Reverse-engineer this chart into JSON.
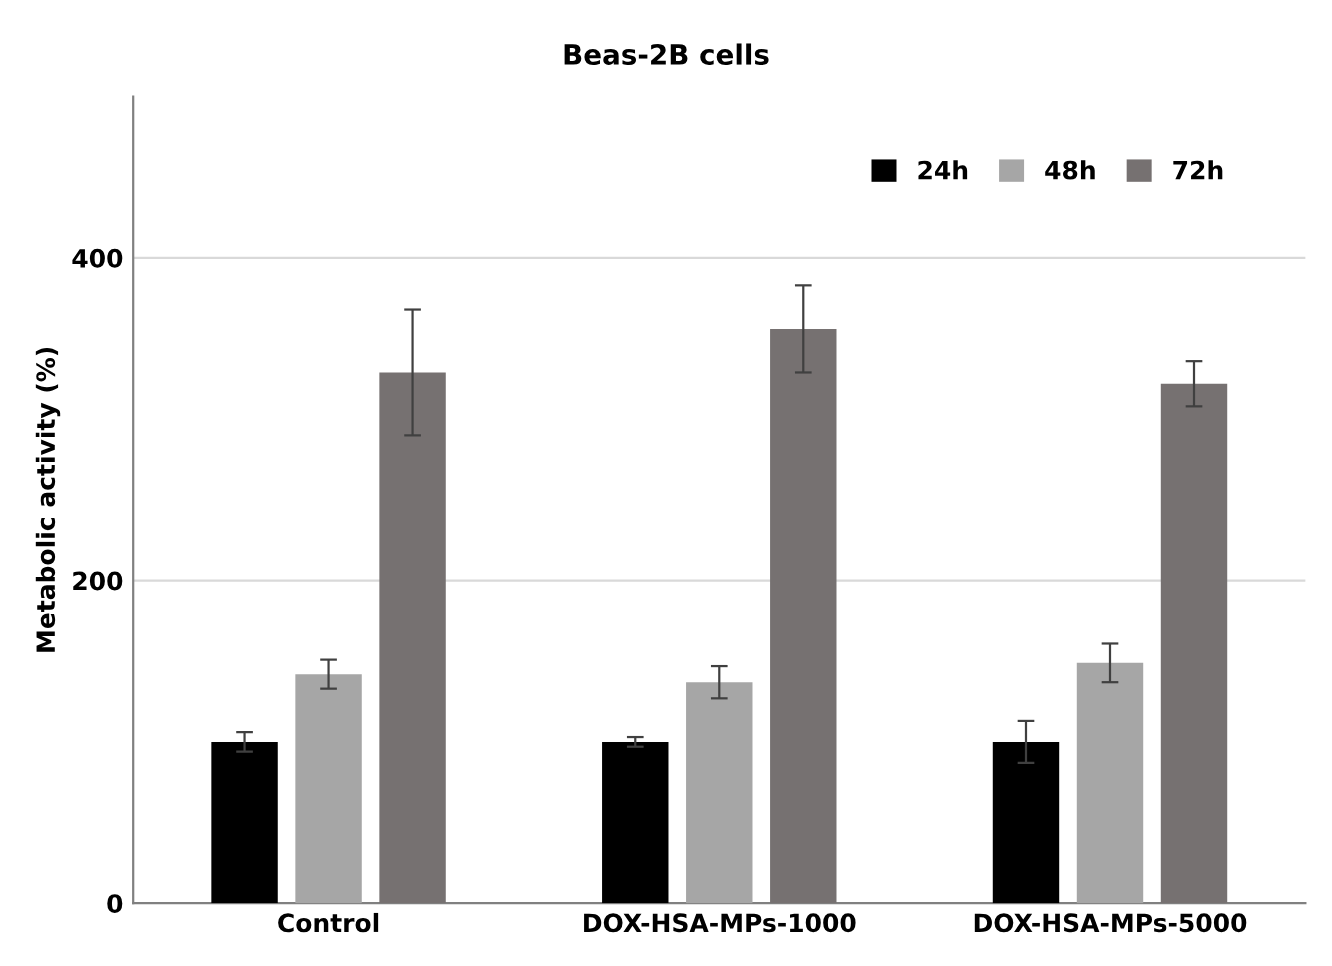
{
  "chart_data": {
    "type": "bar",
    "title": "Beas-2B cells",
    "ylabel": "Metabolic activity (%)",
    "categories": [
      "Control",
      "DOX-HSA-MPs-1000",
      "DOX-HSA-MPs-5000"
    ],
    "series": [
      {
        "name": "24h",
        "color": "#000000",
        "values": [
          100,
          100,
          100
        ],
        "errors": [
          6,
          3,
          13
        ]
      },
      {
        "name": "48h",
        "color": "#a6a6a6",
        "values": [
          142,
          137,
          149
        ],
        "errors": [
          9,
          10,
          12
        ]
      },
      {
        "name": "72h",
        "color": "#767171",
        "values": [
          329,
          356,
          322
        ],
        "errors": [
          39,
          27,
          14
        ]
      }
    ],
    "ylim": [
      0,
      500
    ],
    "yticks": [
      0,
      200,
      400
    ],
    "grid": "y",
    "legend": "top right"
  }
}
